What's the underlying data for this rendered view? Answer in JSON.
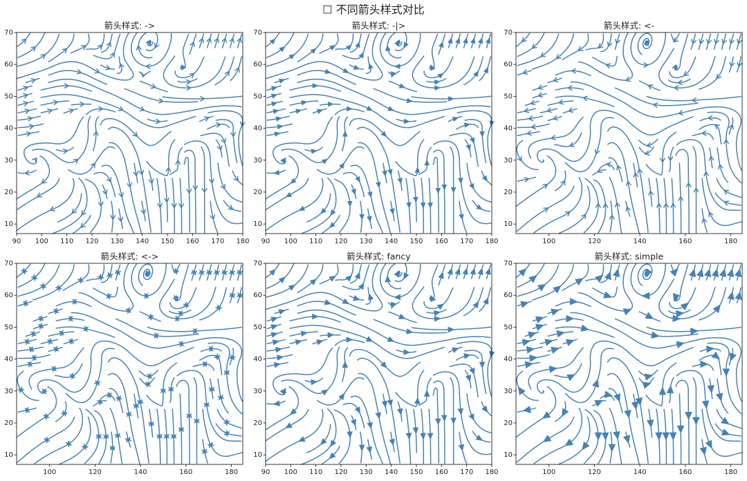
{
  "title": "☐ 不同箭头样式对比",
  "chart_data": [
    {
      "type": "streamplot",
      "title": "箭头样式: ->",
      "arrowstyle": "->",
      "color": "#4682b4",
      "xlim": [
        90,
        180
      ],
      "ylim": [
        7,
        70
      ],
      "xticks": [
        90,
        100,
        110,
        120,
        130,
        140,
        150,
        160,
        170,
        180
      ],
      "yticks": [
        10,
        20,
        30,
        40,
        50,
        60,
        70
      ],
      "x": [
        90,
        105,
        120,
        135,
        150,
        165,
        180
      ],
      "y": [
        10,
        20,
        30,
        40,
        50,
        60,
        70
      ],
      "u": [
        [
          -1,
          -1,
          -0.5,
          0.3,
          0,
          0,
          1
        ],
        [
          -1,
          -0.7,
          0.3,
          0.2,
          0.1,
          0,
          1
        ],
        [
          -0.5,
          0.5,
          0.5,
          0.2,
          0,
          0,
          0.3
        ],
        [
          1,
          1,
          -0.2,
          0.8,
          0.6,
          0.8,
          -0.3
        ],
        [
          1,
          1,
          1,
          1,
          1,
          1,
          1
        ],
        [
          1,
          0.8,
          1,
          -0.5,
          -0.5,
          0.5,
          0.3
        ],
        [
          0.5,
          0.3,
          -0.3,
          0.5,
          0,
          0.3,
          0.4
        ]
      ],
      "v": [
        [
          -0.6,
          -0.3,
          -0.5,
          -0.5,
          -1,
          -1,
          0.2
        ],
        [
          -0.5,
          -0.3,
          -0.6,
          -0.8,
          -1,
          -1,
          -0.3
        ],
        [
          0.5,
          -0.5,
          0.8,
          -1,
          1,
          -1,
          -1
        ],
        [
          0,
          0.3,
          0.8,
          -0.6,
          0.2,
          0.4,
          -0.5
        ],
        [
          0.3,
          0.1,
          -0.3,
          -0.4,
          -0.1,
          0,
          0.1
        ],
        [
          0.2,
          0.3,
          -0.5,
          0.5,
          -0.5,
          0.8,
          1
        ],
        [
          0.5,
          0.8,
          0.5,
          0.6,
          -0.5,
          1,
          1
        ]
      ]
    },
    {
      "type": "streamplot",
      "title": "箭头样式: -|>",
      "arrowstyle": "-|>",
      "color": "#4682b4",
      "xlim": [
        90,
        180
      ],
      "ylim": [
        7,
        70
      ],
      "xticks": [
        90,
        100,
        110,
        120,
        130,
        140,
        150,
        160,
        170,
        180
      ],
      "yticks": [
        10,
        20,
        30,
        40,
        50,
        60,
        70
      ],
      "x": [
        90,
        105,
        120,
        135,
        150,
        165,
        180
      ],
      "y": [
        10,
        20,
        30,
        40,
        50,
        60,
        70
      ],
      "u": [
        [
          -1,
          -1,
          -0.5,
          0.3,
          0,
          0,
          1
        ],
        [
          -1,
          -0.7,
          0.3,
          0.2,
          0.1,
          0,
          1
        ],
        [
          -0.5,
          0.5,
          0.5,
          0.2,
          0,
          0,
          0.3
        ],
        [
          1,
          1,
          -0.2,
          0.8,
          0.6,
          0.8,
          -0.3
        ],
        [
          1,
          1,
          1,
          1,
          1,
          1,
          1
        ],
        [
          1,
          0.8,
          1,
          -0.5,
          -0.5,
          0.5,
          0.3
        ],
        [
          0.5,
          0.3,
          -0.3,
          0.5,
          0,
          0.3,
          0.4
        ]
      ],
      "v": [
        [
          -0.6,
          -0.3,
          -0.5,
          -0.5,
          -1,
          -1,
          0.2
        ],
        [
          -0.5,
          -0.3,
          -0.6,
          -0.8,
          -1,
          -1,
          -0.3
        ],
        [
          0.5,
          -0.5,
          0.8,
          -1,
          1,
          -1,
          -1
        ],
        [
          0,
          0.3,
          0.8,
          -0.6,
          0.2,
          0.4,
          -0.5
        ],
        [
          0.3,
          0.1,
          -0.3,
          -0.4,
          -0.1,
          0,
          0.1
        ],
        [
          0.2,
          0.3,
          -0.5,
          0.5,
          -0.5,
          0.8,
          1
        ],
        [
          0.5,
          0.8,
          0.5,
          0.6,
          -0.5,
          1,
          1
        ]
      ]
    },
    {
      "type": "streamplot",
      "title": "箭头样式: <-",
      "arrowstyle": "<-",
      "color": "#4682b4",
      "xlim": [
        85.5,
        185
      ],
      "ylim": [
        7,
        70
      ],
      "xticks": [
        100,
        120,
        140,
        160,
        180
      ],
      "yticks": [
        10,
        20,
        30,
        40,
        50,
        60,
        70
      ],
      "x": [
        90,
        105,
        120,
        135,
        150,
        165,
        180
      ],
      "y": [
        10,
        20,
        30,
        40,
        50,
        60,
        70
      ],
      "u": [
        [
          -1,
          -1,
          -0.5,
          0.3,
          0,
          0,
          1
        ],
        [
          -1,
          -0.7,
          0.3,
          0.2,
          0.1,
          0,
          1
        ],
        [
          -0.5,
          0.5,
          0.5,
          0.2,
          0,
          0,
          0.3
        ],
        [
          1,
          1,
          -0.2,
          0.8,
          0.6,
          0.8,
          -0.3
        ],
        [
          1,
          1,
          1,
          1,
          1,
          1,
          1
        ],
        [
          1,
          0.8,
          1,
          -0.5,
          -0.5,
          0.5,
          0.3
        ],
        [
          0.5,
          0.3,
          -0.3,
          0.5,
          0,
          0.3,
          0.4
        ]
      ],
      "v": [
        [
          -0.6,
          -0.3,
          -0.5,
          -0.5,
          -1,
          -1,
          0.2
        ],
        [
          -0.5,
          -0.3,
          -0.6,
          -0.8,
          -1,
          -1,
          -0.3
        ],
        [
          0.5,
          -0.5,
          0.8,
          -1,
          1,
          -1,
          -1
        ],
        [
          0,
          0.3,
          0.8,
          -0.6,
          0.2,
          0.4,
          -0.5
        ],
        [
          0.3,
          0.1,
          -0.3,
          -0.4,
          -0.1,
          0,
          0.1
        ],
        [
          0.2,
          0.3,
          -0.5,
          0.5,
          -0.5,
          0.8,
          1
        ],
        [
          0.5,
          0.8,
          0.5,
          0.6,
          -0.5,
          1,
          1
        ]
      ]
    },
    {
      "type": "streamplot",
      "title": "箭头样式: <->",
      "arrowstyle": "<->",
      "color": "#4682b4",
      "xlim": [
        85.5,
        185
      ],
      "ylim": [
        7,
        70
      ],
      "xticks": [
        100,
        120,
        140,
        160,
        180
      ],
      "yticks": [
        10,
        20,
        30,
        40,
        50,
        60,
        70
      ],
      "x": [
        90,
        105,
        120,
        135,
        150,
        165,
        180
      ],
      "y": [
        10,
        20,
        30,
        40,
        50,
        60,
        70
      ],
      "u": [
        [
          -1,
          -1,
          -0.5,
          0.3,
          0,
          0,
          1
        ],
        [
          -1,
          -0.7,
          0.3,
          0.2,
          0.1,
          0,
          1
        ],
        [
          -0.5,
          0.5,
          0.5,
          0.2,
          0,
          0,
          0.3
        ],
        [
          1,
          1,
          -0.2,
          0.8,
          0.6,
          0.8,
          -0.3
        ],
        [
          1,
          1,
          1,
          1,
          1,
          1,
          1
        ],
        [
          1,
          0.8,
          1,
          -0.5,
          -0.5,
          0.5,
          0.3
        ],
        [
          0.5,
          0.3,
          -0.3,
          0.5,
          0,
          0.3,
          0.4
        ]
      ],
      "v": [
        [
          -0.6,
          -0.3,
          -0.5,
          -0.5,
          -1,
          -1,
          0.2
        ],
        [
          -0.5,
          -0.3,
          -0.6,
          -0.8,
          -1,
          -1,
          -0.3
        ],
        [
          0.5,
          -0.5,
          0.8,
          -1,
          1,
          -1,
          -1
        ],
        [
          0,
          0.3,
          0.8,
          -0.6,
          0.2,
          0.4,
          -0.5
        ],
        [
          0.3,
          0.1,
          -0.3,
          -0.4,
          -0.1,
          0,
          0.1
        ],
        [
          0.2,
          0.3,
          -0.5,
          0.5,
          -0.5,
          0.8,
          1
        ],
        [
          0.5,
          0.8,
          0.5,
          0.6,
          -0.5,
          1,
          1
        ]
      ]
    },
    {
      "type": "streamplot",
      "title": "箭头样式: fancy",
      "arrowstyle": "fancy",
      "color": "#4682b4",
      "xlim": [
        90,
        180
      ],
      "ylim": [
        7,
        70
      ],
      "xticks": [
        90,
        100,
        110,
        120,
        130,
        140,
        150,
        160,
        170,
        180
      ],
      "yticks": [
        10,
        20,
        30,
        40,
        50,
        60,
        70
      ],
      "x": [
        90,
        105,
        120,
        135,
        150,
        165,
        180
      ],
      "y": [
        10,
        20,
        30,
        40,
        50,
        60,
        70
      ],
      "u": [
        [
          -1,
          -1,
          -0.5,
          0.3,
          0,
          0,
          1
        ],
        [
          -1,
          -0.7,
          0.3,
          0.2,
          0.1,
          0,
          1
        ],
        [
          -0.5,
          0.5,
          0.5,
          0.2,
          0,
          0,
          0.3
        ],
        [
          1,
          1,
          -0.2,
          0.8,
          0.6,
          0.8,
          -0.3
        ],
        [
          1,
          1,
          1,
          1,
          1,
          1,
          1
        ],
        [
          1,
          0.8,
          1,
          -0.5,
          -0.5,
          0.5,
          0.3
        ],
        [
          0.5,
          0.3,
          -0.3,
          0.5,
          0,
          0.3,
          0.4
        ]
      ],
      "v": [
        [
          -0.6,
          -0.3,
          -0.5,
          -0.5,
          -1,
          -1,
          0.2
        ],
        [
          -0.5,
          -0.3,
          -0.6,
          -0.8,
          -1,
          -1,
          -0.3
        ],
        [
          0.5,
          -0.5,
          0.8,
          -1,
          1,
          -1,
          -1
        ],
        [
          0,
          0.3,
          0.8,
          -0.6,
          0.2,
          0.4,
          -0.5
        ],
        [
          0.3,
          0.1,
          -0.3,
          -0.4,
          -0.1,
          0,
          0.1
        ],
        [
          0.2,
          0.3,
          -0.5,
          0.5,
          -0.5,
          0.8,
          1
        ],
        [
          0.5,
          0.8,
          0.5,
          0.6,
          -0.5,
          1,
          1
        ]
      ]
    },
    {
      "type": "streamplot",
      "title": "箭头样式: simple",
      "arrowstyle": "simple",
      "color": "#4682b4",
      "xlim": [
        85.5,
        185
      ],
      "ylim": [
        7,
        70
      ],
      "xticks": [
        100,
        120,
        140,
        160,
        180
      ],
      "yticks": [
        10,
        20,
        30,
        40,
        50,
        60,
        70
      ],
      "x": [
        90,
        105,
        120,
        135,
        150,
        165,
        180
      ],
      "y": [
        10,
        20,
        30,
        40,
        50,
        60,
        70
      ],
      "u": [
        [
          -1,
          -1,
          -0.5,
          0.3,
          0,
          0,
          1
        ],
        [
          -1,
          -0.7,
          0.3,
          0.2,
          0.1,
          0,
          1
        ],
        [
          -0.5,
          0.5,
          0.5,
          0.2,
          0,
          0,
          0.3
        ],
        [
          1,
          1,
          -0.2,
          0.8,
          0.6,
          0.8,
          -0.3
        ],
        [
          1,
          1,
          1,
          1,
          1,
          1,
          1
        ],
        [
          1,
          0.8,
          1,
          -0.5,
          -0.5,
          0.5,
          0.3
        ],
        [
          0.5,
          0.3,
          -0.3,
          0.5,
          0,
          0.3,
          0.4
        ]
      ],
      "v": [
        [
          -0.6,
          -0.3,
          -0.5,
          -0.5,
          -1,
          -1,
          0.2
        ],
        [
          -0.5,
          -0.3,
          -0.6,
          -0.8,
          -1,
          -1,
          -0.3
        ],
        [
          0.5,
          -0.5,
          0.8,
          -1,
          1,
          -1,
          -1
        ],
        [
          0,
          0.3,
          0.8,
          -0.6,
          0.2,
          0.4,
          -0.5
        ],
        [
          0.3,
          0.1,
          -0.3,
          -0.4,
          -0.1,
          0,
          0.1
        ],
        [
          0.2,
          0.3,
          -0.5,
          0.5,
          -0.5,
          0.8,
          1
        ],
        [
          0.5,
          0.8,
          0.5,
          0.6,
          -0.5,
          1,
          1
        ]
      ]
    }
  ]
}
